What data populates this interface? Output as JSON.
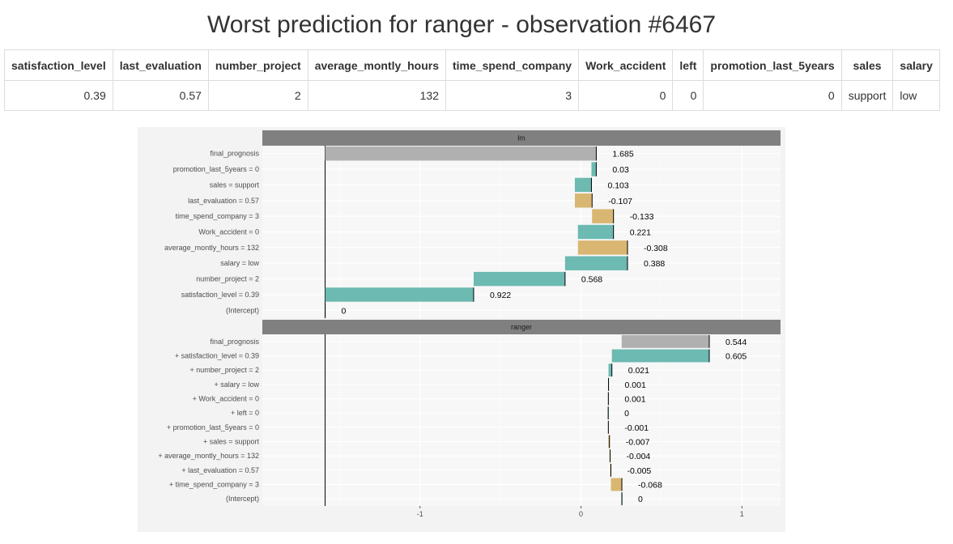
{
  "page_title": "Worst prediction for ranger - observation #6467",
  "table": {
    "headers": [
      "satisfaction_level",
      "last_evaluation",
      "number_project",
      "average_montly_hours",
      "time_spend_company",
      "Work_accident",
      "left",
      "promotion_last_5years",
      "sales",
      "salary"
    ],
    "row": [
      "0.39",
      "0.57",
      "2",
      "132",
      "3",
      "0",
      "0",
      "0",
      "support",
      "low"
    ]
  },
  "chart_data": {
    "type": "bar",
    "subtype": "waterfall",
    "xlim": [
      -1.98,
      1.24
    ],
    "x_ticks": [
      -1,
      0,
      1
    ],
    "x_tick_labels": [
      "-1",
      "0",
      "1"
    ],
    "colors": {
      "positive": "#6cbab1",
      "negative": "#d9b772",
      "prognosis": "#b0b0b0",
      "strip": "#808080",
      "panel": "#f3f3f3"
    },
    "panels": [
      {
        "name": "lm",
        "reference": -1.59,
        "rows": [
          {
            "label": "final_prognosis",
            "value": 1.685,
            "value_label": "1.685",
            "start": -1.59,
            "end": 0.095,
            "kind": "prognosis"
          },
          {
            "label": "promotion_last_5years = 0",
            "value": 0.03,
            "value_label": "0.03",
            "start": 0.065,
            "end": 0.095,
            "kind": "positive"
          },
          {
            "label": "sales = support",
            "value": 0.103,
            "value_label": "0.103",
            "start": -0.038,
            "end": 0.065,
            "kind": "positive"
          },
          {
            "label": "last_evaluation = 0.57",
            "value": -0.107,
            "value_label": "-0.107",
            "start": -0.038,
            "end": 0.069,
            "kind": "negative"
          },
          {
            "label": "time_spend_company = 3",
            "value": -0.133,
            "value_label": "-0.133",
            "start": 0.069,
            "end": 0.202,
            "kind": "negative"
          },
          {
            "label": "Work_accident = 0",
            "value": 0.221,
            "value_label": "0.221",
            "start": -0.019,
            "end": 0.202,
            "kind": "positive"
          },
          {
            "label": "average_montly_hours = 132",
            "value": -0.308,
            "value_label": "-0.308",
            "start": -0.019,
            "end": 0.289,
            "kind": "negative"
          },
          {
            "label": "salary = low",
            "value": 0.388,
            "value_label": "0.388",
            "start": -0.099,
            "end": 0.289,
            "kind": "positive"
          },
          {
            "label": "number_project = 2",
            "value": 0.568,
            "value_label": "0.568",
            "start": -0.667,
            "end": -0.099,
            "kind": "positive"
          },
          {
            "label": "satisfaction_level = 0.39",
            "value": 0.922,
            "value_label": "0.922",
            "start": -1.589,
            "end": -0.667,
            "kind": "positive"
          },
          {
            "label": "(Intercept)",
            "value": 0,
            "value_label": "0",
            "start": -1.59,
            "end": -1.59,
            "kind": "positive"
          }
        ]
      },
      {
        "name": "ranger",
        "reference": -1.59,
        "rows": [
          {
            "label": "final_prognosis",
            "value": 0.544,
            "value_label": "0.544",
            "start": 0.253,
            "end": 0.797,
            "kind": "prognosis"
          },
          {
            "label": "+ satisfaction_level = 0.39",
            "value": 0.605,
            "value_label": "0.605",
            "start": 0.192,
            "end": 0.797,
            "kind": "positive"
          },
          {
            "label": "+ number_project = 2",
            "value": 0.021,
            "value_label": "0.021",
            "start": 0.171,
            "end": 0.192,
            "kind": "positive"
          },
          {
            "label": "+ salary = low",
            "value": 0.001,
            "value_label": "0.001",
            "start": 0.17,
            "end": 0.171,
            "kind": "positive"
          },
          {
            "label": "+ Work_accident = 0",
            "value": 0.001,
            "value_label": "0.001",
            "start": 0.169,
            "end": 0.17,
            "kind": "positive"
          },
          {
            "label": "+ left = 0",
            "value": 0,
            "value_label": "0",
            "start": 0.169,
            "end": 0.169,
            "kind": "positive"
          },
          {
            "label": "+ promotion_last_5years = 0",
            "value": -0.001,
            "value_label": "-0.001",
            "start": 0.169,
            "end": 0.17,
            "kind": "negative"
          },
          {
            "label": "+ sales = support",
            "value": -0.007,
            "value_label": "-0.007",
            "start": 0.17,
            "end": 0.177,
            "kind": "negative"
          },
          {
            "label": "+ average_montly_hours = 132",
            "value": -0.004,
            "value_label": "-0.004",
            "start": 0.177,
            "end": 0.181,
            "kind": "negative"
          },
          {
            "label": "+ last_evaluation = 0.57",
            "value": -0.005,
            "value_label": "-0.005",
            "start": 0.181,
            "end": 0.186,
            "kind": "negative"
          },
          {
            "label": "+ time_spend_company = 3",
            "value": -0.068,
            "value_label": "-0.068",
            "start": 0.186,
            "end": 0.254,
            "kind": "negative"
          },
          {
            "label": "(Intercept)",
            "value": 0,
            "value_label": "0",
            "start": 0.254,
            "end": 0.254,
            "kind": "positive"
          }
        ]
      }
    ]
  }
}
